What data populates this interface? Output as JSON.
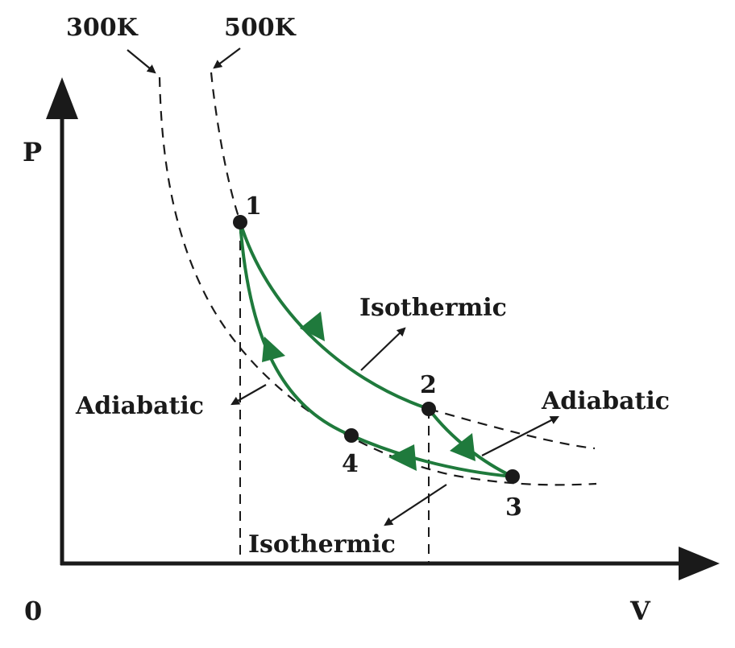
{
  "axes": {
    "y_label": "P",
    "x_label": "V",
    "origin_label": "0"
  },
  "isotherms": {
    "low_label": "300K",
    "high_label": "500K"
  },
  "points": {
    "p1": "1",
    "p2": "2",
    "p3": "3",
    "p4": "4"
  },
  "process_labels": {
    "isothermic_upper": "Isothermic",
    "isothermic_lower": "Isothermic",
    "adiabatic_left": "Adiabatic",
    "adiabatic_right": "Adiabatic"
  },
  "colors": {
    "cycle": "#1f7a3c",
    "ink": "#1a1a1a"
  }
}
